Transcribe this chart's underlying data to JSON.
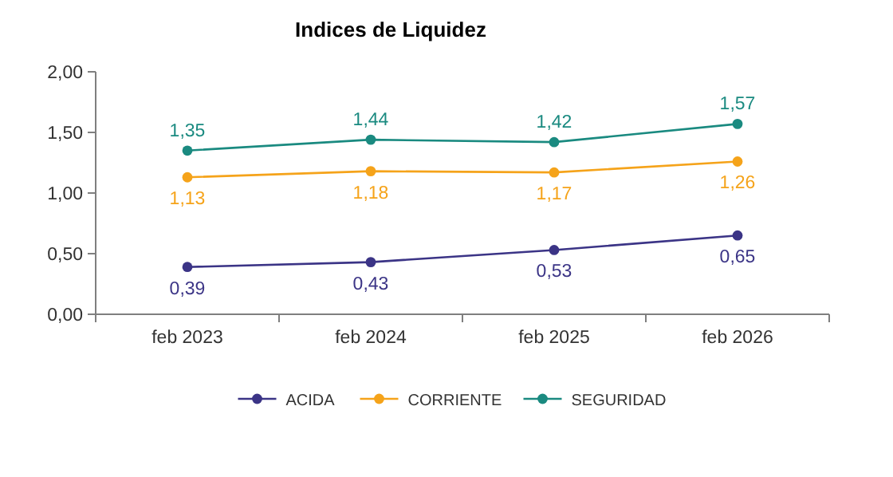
{
  "chart_data": {
    "type": "line",
    "title": "Indices de Liquidez",
    "categories": [
      "feb 2023",
      "feb 2024",
      "feb 2025",
      "feb 2026"
    ],
    "series": [
      {
        "name": "ACIDA",
        "color": "#3b3486",
        "values": [
          0.39,
          0.43,
          0.53,
          0.65
        ],
        "value_labels": [
          "0,39",
          "0,43",
          "0,53",
          "0,65"
        ]
      },
      {
        "name": "CORRIENTE",
        "color": "#f5a31a",
        "values": [
          1.13,
          1.18,
          1.17,
          1.26
        ],
        "value_labels": [
          "1,13",
          "1,18",
          "1,17",
          "1,26"
        ]
      },
      {
        "name": "SEGURIDAD",
        "color": "#1a8a80",
        "values": [
          1.35,
          1.44,
          1.42,
          1.57
        ],
        "value_labels": [
          "1,35",
          "1,44",
          "1,42",
          "1,57"
        ]
      }
    ],
    "ylim": [
      0,
      2
    ],
    "yticks": [
      {
        "value": 0,
        "label": "0,00"
      },
      {
        "value": 0.5,
        "label": "0,50"
      },
      {
        "value": 1,
        "label": "1,00"
      },
      {
        "value": 1.5,
        "label": "1,50"
      },
      {
        "value": 2,
        "label": "2,00"
      }
    ],
    "grid": false,
    "legend": "bottom",
    "marker": "circle",
    "line_style": "solid"
  }
}
